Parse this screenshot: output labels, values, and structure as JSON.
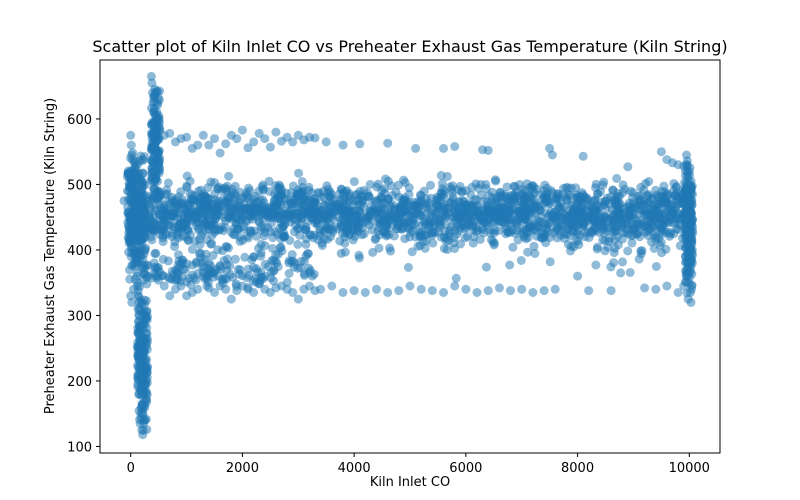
{
  "chart_data": {
    "type": "scatter",
    "title": "Scatter plot of Kiln Inlet CO vs Preheater Exhaust Gas Temperature  (Kiln String)",
    "xlabel": "Kiln Inlet CO",
    "ylabel": "Preheater Exhaust Gas Temperature  (Kiln String)",
    "xlim": [
      -550,
      10550
    ],
    "ylim": [
      90,
      690
    ],
    "x_ticks": [
      0,
      2000,
      4000,
      6000,
      8000,
      10000
    ],
    "x_tick_labels": [
      "0",
      "2000",
      "4000",
      "6000",
      "8000",
      "10000"
    ],
    "y_ticks": [
      100,
      200,
      300,
      400,
      500,
      600
    ],
    "y_tick_labels": [
      "100",
      "200",
      "300",
      "400",
      "500",
      "600"
    ],
    "grid": false,
    "legend": "none",
    "marker_color": "#1f77b4",
    "marker_alpha": 0.5,
    "series": [
      {
        "points": [
          [
            -120,
            475
          ],
          [
            0,
            575
          ],
          [
            10,
            560
          ],
          [
            20,
            545
          ],
          [
            30,
            520
          ],
          [
            40,
            500
          ],
          [
            50,
            480
          ],
          [
            60,
            460
          ],
          [
            70,
            440
          ],
          [
            80,
            420
          ],
          [
            90,
            400
          ],
          [
            100,
            380
          ],
          [
            110,
            360
          ],
          [
            120,
            345
          ],
          [
            0,
            330
          ],
          [
            20,
            320
          ],
          [
            50,
            340
          ],
          [
            80,
            355
          ],
          [
            130,
            310
          ],
          [
            140,
            290
          ],
          [
            150,
            270
          ],
          [
            160,
            250
          ],
          [
            170,
            230
          ],
          [
            180,
            210
          ],
          [
            190,
            195
          ],
          [
            200,
            180
          ],
          [
            210,
            165
          ],
          [
            220,
            150
          ],
          [
            230,
            135
          ],
          [
            200,
            125
          ],
          [
            215,
            118
          ],
          [
            225,
            140
          ],
          [
            205,
            160
          ],
          [
            195,
            220
          ],
          [
            185,
            240
          ],
          [
            175,
            260
          ],
          [
            165,
            280
          ],
          [
            155,
            300
          ],
          [
            145,
            320
          ],
          [
            135,
            330
          ],
          [
            125,
            350
          ],
          [
            180,
            205
          ],
          [
            190,
            215
          ],
          [
            160,
            225
          ],
          [
            170,
            245
          ],
          [
            150,
            255
          ],
          [
            370,
            665
          ],
          [
            380,
            655
          ],
          [
            390,
            640
          ],
          [
            400,
            625
          ],
          [
            410,
            610
          ],
          [
            420,
            595
          ],
          [
            430,
            580
          ],
          [
            440,
            565
          ],
          [
            450,
            550
          ],
          [
            460,
            535
          ],
          [
            470,
            520
          ],
          [
            480,
            505
          ],
          [
            490,
            490
          ],
          [
            380,
            560
          ],
          [
            400,
            540
          ],
          [
            520,
            582
          ],
          [
            600,
            575
          ],
          [
            700,
            578
          ],
          [
            800,
            565
          ],
          [
            900,
            570
          ],
          [
            1000,
            572
          ],
          [
            1100,
            555
          ],
          [
            1200,
            560
          ],
          [
            1300,
            575
          ],
          [
            1400,
            560
          ],
          [
            1500,
            570
          ],
          [
            1600,
            548
          ],
          [
            1700,
            562
          ],
          [
            1800,
            575
          ],
          [
            1900,
            570
          ],
          [
            2000,
            583
          ],
          [
            2100,
            556
          ],
          [
            2200,
            565
          ],
          [
            2300,
            578
          ],
          [
            2400,
            570
          ],
          [
            2500,
            557
          ],
          [
            2600,
            580
          ],
          [
            2700,
            566
          ],
          [
            2800,
            572
          ],
          [
            2900,
            565
          ],
          [
            3000,
            575
          ],
          [
            3100,
            568
          ],
          [
            3200,
            572
          ],
          [
            3300,
            571
          ],
          [
            3500,
            565
          ],
          [
            3800,
            560
          ],
          [
            4100,
            562
          ],
          [
            4600,
            563
          ],
          [
            5100,
            555
          ],
          [
            5600,
            555
          ],
          [
            5800,
            558
          ],
          [
            6300,
            553
          ],
          [
            6400,
            552
          ],
          [
            7500,
            555
          ],
          [
            7550,
            545
          ],
          [
            8100,
            543
          ],
          [
            8900,
            527
          ],
          [
            9500,
            550
          ],
          [
            9600,
            538
          ],
          [
            9700,
            533
          ],
          [
            9800,
            530
          ],
          [
            9900,
            528
          ],
          [
            600,
            345
          ],
          [
            700,
            330
          ],
          [
            800,
            340
          ],
          [
            900,
            345
          ],
          [
            1000,
            330
          ],
          [
            1100,
            335
          ],
          [
            1200,
            340
          ],
          [
            1300,
            360
          ],
          [
            1400,
            342
          ],
          [
            1500,
            335
          ],
          [
            1600,
            345
          ],
          [
            1700,
            340
          ],
          [
            1800,
            325
          ],
          [
            1900,
            338
          ],
          [
            2000,
            345
          ],
          [
            2100,
            340
          ],
          [
            2200,
            335
          ],
          [
            2300,
            348
          ],
          [
            2400,
            340
          ],
          [
            2500,
            335
          ],
          [
            2600,
            342
          ],
          [
            2700,
            345
          ],
          [
            2800,
            340
          ],
          [
            2900,
            335
          ],
          [
            3000,
            325
          ],
          [
            3100,
            340
          ],
          [
            3200,
            345
          ],
          [
            3300,
            338
          ],
          [
            3400,
            340
          ],
          [
            3600,
            345
          ],
          [
            3800,
            335
          ],
          [
            4000,
            338
          ],
          [
            4200,
            335
          ],
          [
            4400,
            340
          ],
          [
            4600,
            335
          ],
          [
            4800,
            338
          ],
          [
            5000,
            345
          ],
          [
            5200,
            340
          ],
          [
            5400,
            338
          ],
          [
            5600,
            335
          ],
          [
            5800,
            345
          ],
          [
            6000,
            340
          ],
          [
            6200,
            335
          ],
          [
            6400,
            338
          ],
          [
            6600,
            342
          ],
          [
            6800,
            338
          ],
          [
            7000,
            340
          ],
          [
            7200,
            335
          ],
          [
            7400,
            338
          ],
          [
            7600,
            340
          ],
          [
            8000,
            360
          ],
          [
            8200,
            338
          ],
          [
            8600,
            338
          ],
          [
            9200,
            342
          ],
          [
            9400,
            340
          ],
          [
            9600,
            345
          ],
          [
            9800,
            335
          ],
          [
            9900,
            345
          ],
          [
            9950,
            545
          ],
          [
            9960,
            530
          ],
          [
            9970,
            515
          ],
          [
            9980,
            500
          ],
          [
            9990,
            485
          ],
          [
            10000,
            470
          ],
          [
            10010,
            455
          ],
          [
            10020,
            440
          ],
          [
            10030,
            425
          ],
          [
            10040,
            410
          ],
          [
            10050,
            395
          ],
          [
            10010,
            380
          ],
          [
            10000,
            365
          ],
          [
            9990,
            350
          ],
          [
            10020,
            335
          ],
          [
            9980,
            325
          ],
          [
            10030,
            320
          ],
          [
            10040,
            340
          ],
          [
            10000,
            520
          ],
          [
            10030,
            505
          ],
          [
            9950,
            360
          ],
          [
            9960,
            370
          ]
        ]
      }
    ],
    "bands": [
      {
        "x_range": [
          160,
          10040
        ],
        "y_range": [
          410,
          505
        ],
        "count": 1500
      },
      {
        "x_range": [
          160,
          10040
        ],
        "y_range": [
          380,
          520
        ],
        "count": 500
      },
      {
        "x_range": [
          160,
          10040
        ],
        "y_range": [
          355,
          510
        ],
        "count": 160
      },
      {
        "x_range": [
          200,
          3300
        ],
        "y_range": [
          340,
          400
        ],
        "count": 160
      },
      {
        "x_range": [
          -60,
          260
        ],
        "y_range": [
          340,
          560
        ],
        "count": 260
      },
      {
        "x_range": [
          120,
          300
        ],
        "y_range": [
          120,
          340
        ],
        "count": 180
      },
      {
        "x_range": [
          370,
          520
        ],
        "y_range": [
          480,
          665
        ],
        "count": 120
      },
      {
        "x_range": [
          9930,
          10060
        ],
        "y_range": [
          320,
          545
        ],
        "count": 160
      }
    ]
  }
}
